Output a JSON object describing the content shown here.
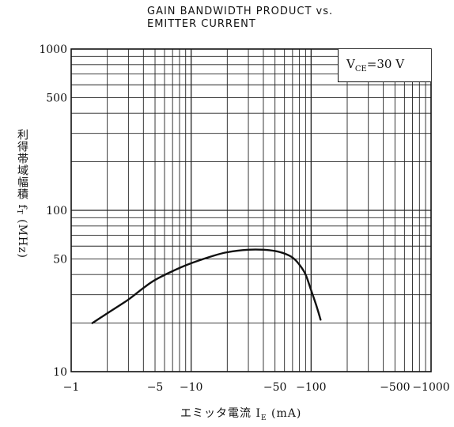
{
  "chart_data": {
    "type": "line",
    "title": "GAIN BANDWIDTH PRODUCT vs.",
    "subtitle": "EMITTER CURRENT",
    "ylabel_main": "利得帯域幅積 f",
    "ylabel_sub": "T",
    "ylabel_unit": "(MHz)",
    "xlabel_main": "エミッタ電流 I",
    "xlabel_sub": "E",
    "xlabel_unit": "(mA)",
    "annotation_main": "V",
    "annotation_sub": "CE",
    "annotation_value": "=30 V",
    "x_scale": "log",
    "y_scale": "log",
    "xlim": [
      1,
      1000
    ],
    "ylim": [
      10,
      1000
    ],
    "grid": true,
    "x_ticks": [
      {
        "value": 1,
        "label": "−1"
      },
      {
        "value": 5,
        "label": "−5"
      },
      {
        "value": 10,
        "label": "−10"
      },
      {
        "value": 50,
        "label": "−50"
      },
      {
        "value": 100,
        "label": "−100"
      },
      {
        "value": 500,
        "label": "−500"
      },
      {
        "value": 1000,
        "label": "−1000"
      }
    ],
    "y_ticks": [
      {
        "value": 10,
        "label": "10"
      },
      {
        "value": 50,
        "label": "50"
      },
      {
        "value": 100,
        "label": "100"
      },
      {
        "value": 500,
        "label": "500"
      },
      {
        "value": 1000,
        "label": "1000"
      }
    ],
    "series": [
      {
        "x": [
          1.5,
          2,
          3,
          4,
          5,
          7,
          10,
          15,
          20,
          30,
          40,
          50,
          60,
          70,
          80,
          90,
          100,
          110,
          120
        ],
        "y": [
          20,
          23,
          28,
          33,
          37,
          42,
          47,
          52,
          55,
          57,
          57,
          56,
          54,
          51,
          46,
          40,
          32,
          26,
          21
        ]
      }
    ]
  }
}
